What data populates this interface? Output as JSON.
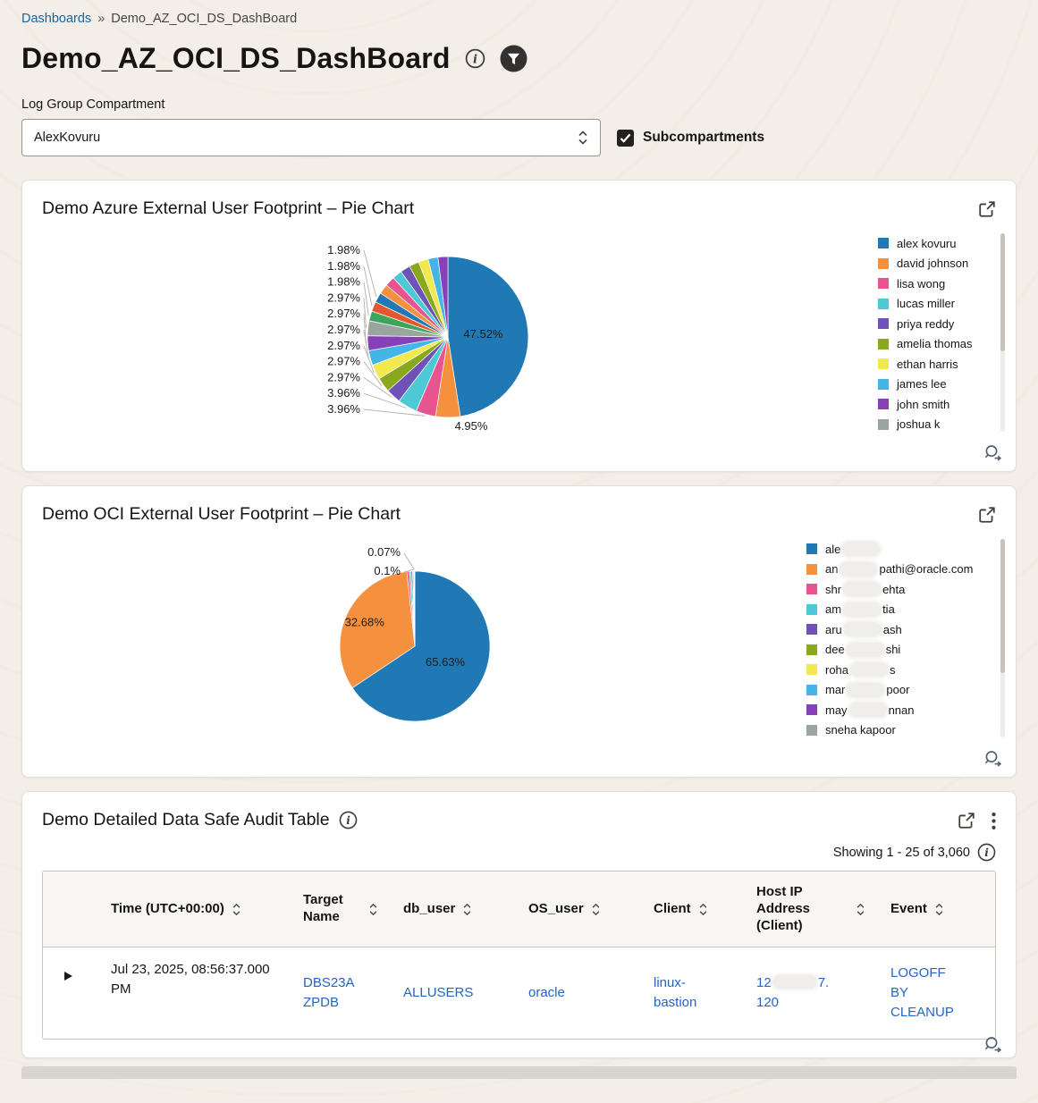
{
  "breadcrumb": {
    "parent": "Dashboards",
    "separator": "»",
    "current": "Demo_AZ_OCI_DS_DashBoard"
  },
  "header": {
    "title": "Demo_AZ_OCI_DS_DashBoard"
  },
  "compartment": {
    "label": "Log Group Compartment",
    "value": "AlexKovuru",
    "subcompartments_label": "Subcompartments",
    "subcompartments_checked": true
  },
  "icons": {
    "title_info": "info-icon",
    "title_filter": "filter-funnel-icon",
    "select": "select-updown-chevrons-icon",
    "card_expand": "open-in-new-window-icon",
    "card_menu": "kebab-menu-icon",
    "drill": "magnifier-arrow-icon",
    "sort": "sort-updown-icon",
    "row_expand": "expand-caret-icon",
    "checkbox": "checkmark-icon"
  },
  "colors": {
    "page_bg": "#f3efe8",
    "card_bg": "#ffffff",
    "link": "#2563c4",
    "breadcrumb_link": "#17659f"
  },
  "chart_data": [
    {
      "type": "pie",
      "title": "Demo Azure External User Footprint – Pie Chart",
      "unit": "%",
      "values": [
        47.52,
        4.95,
        3.96,
        3.96,
        2.97,
        2.97,
        2.97,
        2.97,
        2.97,
        2.97,
        1.98,
        1.98,
        1.98,
        1.98,
        1.98,
        1.98,
        1.98,
        1.98,
        1.98,
        1.98,
        1.98
      ],
      "labels_visible_count": 13,
      "shown_value_labels": [
        "47.52%",
        "4.95%",
        "3.96%",
        "3.96%",
        "2.97%",
        "2.97%",
        "2.97%",
        "2.97%",
        "2.97%",
        "2.97%",
        "1.98%",
        "1.98%",
        "1.98%"
      ],
      "colors": [
        "#2079b5",
        "#f5913e",
        "#e8548f",
        "#4cc9d4",
        "#6f52b8",
        "#8aa81d",
        "#f1e94f",
        "#45b4e6",
        "#8640b8",
        "#9aa5a0",
        "#3da45c",
        "#e4572e"
      ],
      "legend_position": "right",
      "legend": [
        "alex kovuru",
        "david johnson",
        "lisa wong",
        "lucas miller",
        "priya reddy",
        "amelia thomas",
        "ethan harris",
        "james lee",
        "john smith",
        "joshua k"
      ]
    },
    {
      "type": "pie",
      "title": "Demo OCI External User Footprint – Pie Chart",
      "unit": "%",
      "values": [
        65.63,
        32.68,
        0.52,
        0.4,
        0.3,
        0.2,
        0.1,
        0.07,
        0.1
      ],
      "shown_value_labels": [
        "65.63%",
        "32.68%",
        "0.07%",
        "0.1%"
      ],
      "colors": [
        "#2079b5",
        "#f5913e",
        "#e8548f",
        "#4cc9d4",
        "#6f52b8",
        "#8aa81d",
        "#f1e94f",
        "#45b4e6",
        "#8640b8",
        "#9aa5a0",
        "#3da45c",
        "#e4572e"
      ],
      "legend_position": "right",
      "legend": [
        {
          "left": "ale",
          "redacted": true,
          "right": ""
        },
        {
          "left": "an",
          "redacted": true,
          "right": "pathi@oracle.com"
        },
        {
          "left": "shr",
          "redacted": true,
          "right": "ehta"
        },
        {
          "left": "am",
          "redacted": true,
          "right": "tia"
        },
        {
          "left": "aru",
          "redacted": true,
          "right": "ash"
        },
        {
          "left": "dee",
          "redacted": true,
          "right": "shi"
        },
        {
          "left": "roha",
          "redacted": true,
          "right": "s"
        },
        {
          "left": "mar",
          "redacted": true,
          "right": "poor"
        },
        {
          "left": "may",
          "redacted": true,
          "right": "nnan"
        },
        {
          "left": "sneha kapoor",
          "redacted": false,
          "right": ""
        }
      ]
    }
  ],
  "cards": {
    "audit_table": {
      "title": "Demo Detailed Data Safe Audit Table",
      "showing_text": "Showing 1 - 25 of 3,060"
    }
  },
  "audit_table": {
    "columns": [
      {
        "label": "Time (UTC+00:00)",
        "sortable": true
      },
      {
        "label": "Target Name",
        "sortable": true
      },
      {
        "label": "db_user",
        "sortable": true
      },
      {
        "label": "OS_user",
        "sortable": true
      },
      {
        "label": "Client",
        "sortable": true
      },
      {
        "label": "Host IP Address (Client)",
        "sortable": true
      },
      {
        "label": "Event",
        "sortable": true
      }
    ],
    "rows": [
      {
        "time": "Jul 23, 2025, 08:56:37.000 PM",
        "target_name": "DBS23AZPDB",
        "db_user": "ALLUSERS",
        "os_user": "oracle",
        "client": "linux-bastion",
        "host_ip": {
          "prefix": "12",
          "redacted": true,
          "suffix": "7.",
          "line2": "120"
        },
        "event": "LOGOFF BY CLEANUP"
      }
    ]
  }
}
